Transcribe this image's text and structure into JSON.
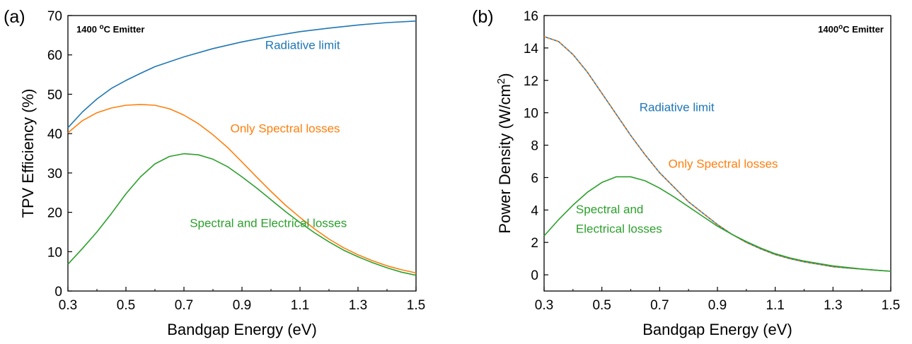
{
  "chart_data": [
    {
      "panel_label": "(a)",
      "type": "line",
      "emitter_label": {
        "pre": "1400 ",
        "sup": "o",
        "post": "C Emitter"
      },
      "xlabel": "Bandgap Energy (eV)",
      "ylabel": "TPV Efficiency (%)",
      "xlim": [
        0.3,
        1.5
      ],
      "ylim": [
        0,
        70
      ],
      "xticks": [
        "0.3",
        "0.5",
        "0.7",
        "0.9",
        "1.1",
        "1.3",
        "1.5"
      ],
      "yticks": [
        "0",
        "10",
        "20",
        "30",
        "40",
        "50",
        "60",
        "70"
      ],
      "grid": false,
      "series": [
        {
          "name": "Radiative limit",
          "color": "#1f77b4",
          "x": [
            0.3,
            0.35,
            0.4,
            0.45,
            0.5,
            0.55,
            0.6,
            0.7,
            0.8,
            0.9,
            1.0,
            1.1,
            1.2,
            1.3,
            1.4,
            1.5
          ],
          "y": [
            41.5,
            45.5,
            48.8,
            51.5,
            53.5,
            55.3,
            57.0,
            59.5,
            61.6,
            63.3,
            64.7,
            65.9,
            66.8,
            67.6,
            68.2,
            68.6
          ]
        },
        {
          "name": "Only Spectral losses",
          "color": "#ff7f0e",
          "x": [
            0.3,
            0.35,
            0.4,
            0.45,
            0.5,
            0.55,
            0.6,
            0.65,
            0.7,
            0.75,
            0.8,
            0.85,
            0.9,
            0.95,
            1.0,
            1.05,
            1.1,
            1.15,
            1.2,
            1.25,
            1.3,
            1.35,
            1.4,
            1.45,
            1.5
          ],
          "y": [
            40.2,
            43.3,
            45.3,
            46.5,
            47.2,
            47.4,
            47.2,
            46.3,
            44.7,
            42.5,
            39.7,
            36.5,
            32.8,
            29.0,
            25.3,
            21.8,
            18.7,
            15.8,
            13.2,
            11.0,
            9.2,
            7.7,
            6.4,
            5.4,
            4.6
          ]
        },
        {
          "name": "Spectral and Electrical losses",
          "color": "#2ca02c",
          "x": [
            0.3,
            0.35,
            0.4,
            0.45,
            0.5,
            0.55,
            0.6,
            0.65,
            0.7,
            0.75,
            0.8,
            0.85,
            0.9,
            0.95,
            1.0,
            1.05,
            1.1,
            1.15,
            1.2,
            1.25,
            1.3,
            1.35,
            1.4,
            1.45,
            1.5
          ],
          "y": [
            6.8,
            10.8,
            15.0,
            19.7,
            24.7,
            29.0,
            32.3,
            34.2,
            34.9,
            34.6,
            33.5,
            31.6,
            29.0,
            26.2,
            23.2,
            20.2,
            17.4,
            14.8,
            12.5,
            10.4,
            8.7,
            7.2,
            5.9,
            4.8,
            4.0
          ]
        }
      ],
      "annotations": [
        {
          "text": "Radiative limit",
          "x": 0.98,
          "y": 61.5,
          "color": "#1f77b4"
        },
        {
          "text": "Only Spectral losses",
          "x": 0.86,
          "y": 40.3,
          "color": "#ff7f0e"
        },
        {
          "text": "Spectral and Electrical losses",
          "x": 0.72,
          "y": 16.2,
          "color": "#2ca02c"
        }
      ]
    },
    {
      "panel_label": "(b)",
      "type": "line",
      "emitter_label": {
        "pre": "1400",
        "sup": "o",
        "post": "C Emitter"
      },
      "xlabel": "Bandgap Energy (eV)",
      "ylabel": {
        "pre": "Power Density (W/cm",
        "sup": "2",
        "post": ")"
      },
      "xlim": [
        0.3,
        1.5
      ],
      "ylim": [
        -1,
        16
      ],
      "xticks": [
        "0.3",
        "0.5",
        "0.7",
        "0.9",
        "1.1",
        "1.3",
        "1.5"
      ],
      "yticks": [
        "0",
        "2",
        "4",
        "6",
        "8",
        "10",
        "12",
        "14",
        "16"
      ],
      "grid": false,
      "series": [
        {
          "name": "Radiative limit",
          "color": "#1f77b4",
          "dashed": false,
          "x": [
            0.3,
            0.35,
            0.4,
            0.45,
            0.5,
            0.55,
            0.6,
            0.65,
            0.7,
            0.75,
            0.8,
            0.85,
            0.9,
            0.95,
            1.0,
            1.05,
            1.1,
            1.15,
            1.2,
            1.25,
            1.3,
            1.35,
            1.4,
            1.45,
            1.5
          ],
          "y": [
            14.7,
            14.4,
            13.6,
            12.5,
            11.2,
            9.9,
            8.6,
            7.4,
            6.3,
            5.4,
            4.5,
            3.8,
            3.1,
            2.5,
            2.0,
            1.6,
            1.25,
            1.0,
            0.8,
            0.65,
            0.5,
            0.42,
            0.35,
            0.28,
            0.22
          ]
        },
        {
          "name": "Only Spectral losses",
          "color": "#ff7f0e",
          "dashed": true,
          "x": [
            0.3,
            0.35,
            0.4,
            0.45,
            0.5,
            0.55,
            0.6,
            0.65,
            0.7,
            0.75,
            0.8,
            0.85,
            0.9,
            0.95,
            1.0,
            1.05,
            1.1,
            1.15,
            1.2,
            1.25,
            1.3,
            1.35,
            1.4,
            1.45,
            1.5
          ],
          "y": [
            14.7,
            14.4,
            13.6,
            12.5,
            11.2,
            9.9,
            8.6,
            7.4,
            6.3,
            5.4,
            4.5,
            3.8,
            3.1,
            2.5,
            2.0,
            1.6,
            1.25,
            1.0,
            0.8,
            0.65,
            0.5,
            0.42,
            0.35,
            0.28,
            0.22
          ]
        },
        {
          "name": "Spectral and Electrical losses",
          "color": "#2ca02c",
          "dashed": false,
          "x": [
            0.3,
            0.35,
            0.4,
            0.45,
            0.5,
            0.55,
            0.6,
            0.65,
            0.7,
            0.75,
            0.8,
            0.85,
            0.9,
            0.95,
            1.0,
            1.05,
            1.1,
            1.15,
            1.2,
            1.25,
            1.3,
            1.35,
            1.4,
            1.45,
            1.5
          ],
          "y": [
            2.4,
            3.4,
            4.3,
            5.1,
            5.7,
            6.05,
            6.05,
            5.8,
            5.35,
            4.8,
            4.2,
            3.6,
            3.0,
            2.5,
            2.05,
            1.65,
            1.3,
            1.05,
            0.85,
            0.7,
            0.55,
            0.45,
            0.36,
            0.28,
            0.22
          ]
        }
      ],
      "annotations": [
        {
          "text": "Radiative limit",
          "x": 0.63,
          "y": 10.1,
          "color": "#1f77b4"
        },
        {
          "text": "Only Spectral losses",
          "x": 0.73,
          "y": 6.6,
          "color": "#ff7f0e"
        },
        {
          "text": "Spectral and",
          "x": 0.41,
          "y": 3.8,
          "color": "#2ca02c"
        },
        {
          "text": "Electrical losses",
          "x": 0.41,
          "y": 2.6,
          "color": "#2ca02c"
        }
      ]
    }
  ]
}
